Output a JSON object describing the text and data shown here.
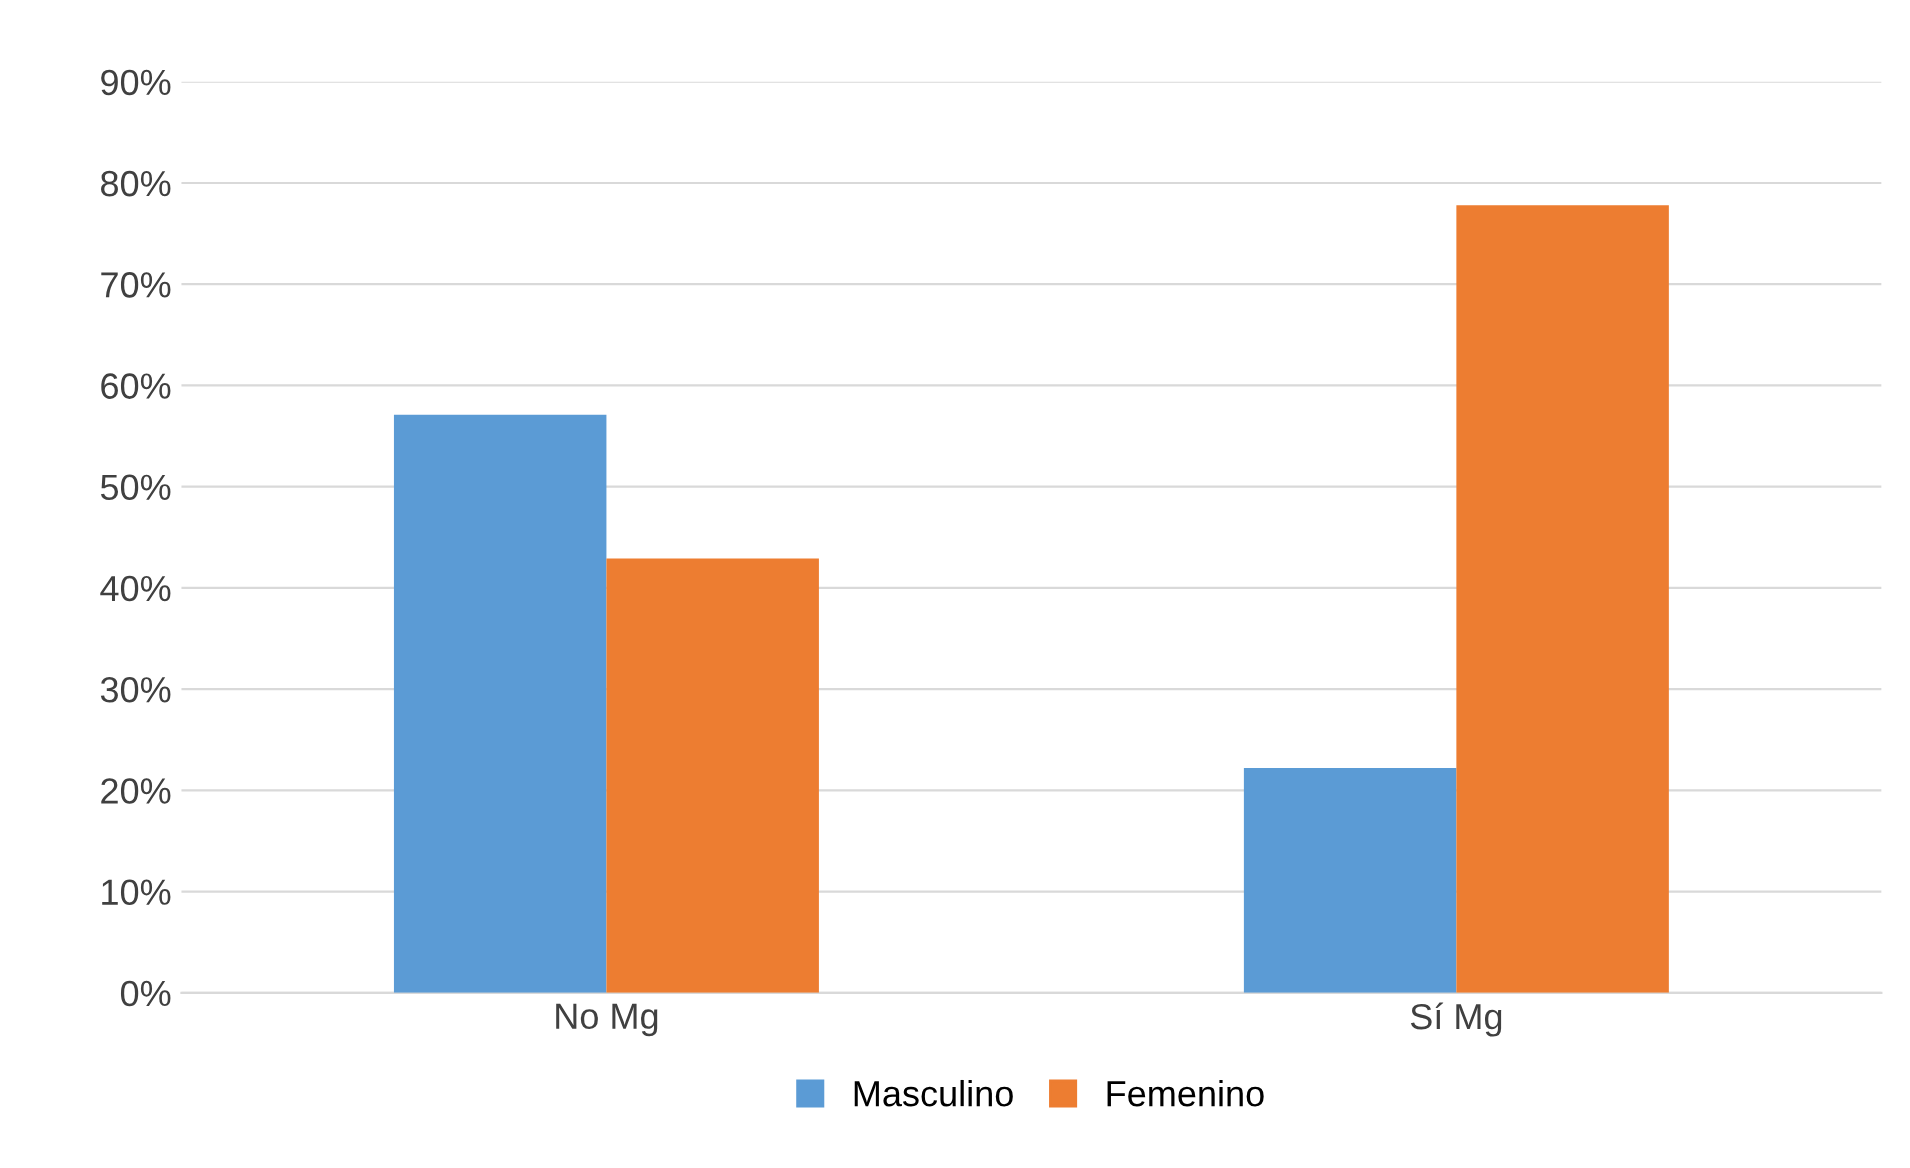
{
  "chart_data": {
    "type": "bar",
    "categories": [
      "No Mg",
      "Sí Mg"
    ],
    "series": [
      {
        "name": "Masculino",
        "color": "#5b9bd5",
        "values": [
          57.1,
          22.2
        ]
      },
      {
        "name": "Femenino",
        "color": "#ed7d31",
        "values": [
          42.9,
          77.8
        ]
      }
    ],
    "ylim": [
      0,
      90
    ],
    "yticks": [
      {
        "value": 0,
        "label": "0%"
      },
      {
        "value": 10,
        "label": "10%"
      },
      {
        "value": 20,
        "label": "20%"
      },
      {
        "value": 30,
        "label": "30%"
      },
      {
        "value": 40,
        "label": "40%"
      },
      {
        "value": 50,
        "label": "50%"
      },
      {
        "value": 60,
        "label": "60%"
      },
      {
        "value": 70,
        "label": "70%"
      },
      {
        "value": 80,
        "label": "80%"
      },
      {
        "value": 90,
        "label": "90%"
      }
    ],
    "grid": "y",
    "legend": "bottom"
  }
}
